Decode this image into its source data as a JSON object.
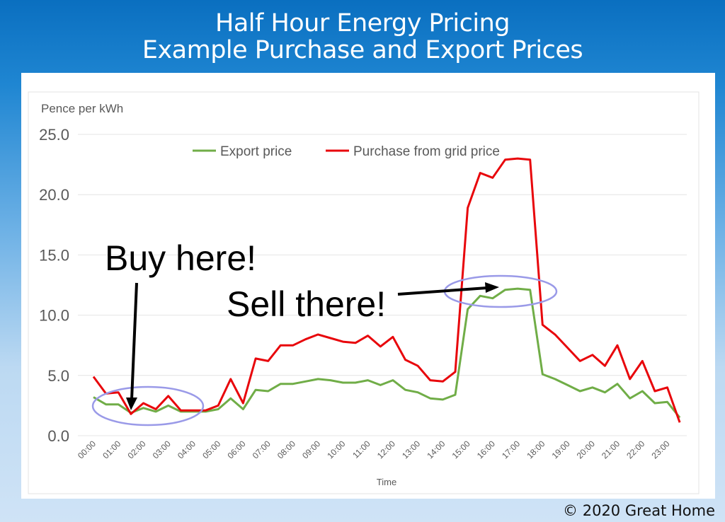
{
  "header": {
    "title_line1": "Half Hour Energy Pricing",
    "title_line2": "Example Purchase and Export Prices"
  },
  "footer": {
    "copyright": "© 2020 Great Home"
  },
  "annotations": {
    "buy": "Buy here!",
    "sell": "Sell there!",
    "ellipse_color": "#9a9ae8"
  },
  "chart_data": {
    "type": "line",
    "title": "",
    "ylabel": "Pence per kWh",
    "xlabel": "Time",
    "ylim": [
      0,
      25
    ],
    "yticks": [
      "0.0",
      "5.0",
      "10.0",
      "15.0",
      "20.0",
      "25.0"
    ],
    "grid": true,
    "legend": "top",
    "xtick_labels": [
      "00:00",
      "01:00",
      "02:00",
      "03:00",
      "04:00",
      "05:00",
      "06:00",
      "07:00",
      "08:00",
      "09:00",
      "10:00",
      "11:00",
      "12:00",
      "13:00",
      "14:00",
      "15:00",
      "16:00",
      "17:00",
      "18:00",
      "19:00",
      "20:00",
      "21:00",
      "22:00",
      "23:00"
    ],
    "x_interval": "half-hourly, 00:00 to 23:30",
    "series": [
      {
        "name": "Export price",
        "color": "#70ad47",
        "values": [
          3.2,
          2.6,
          2.6,
          1.9,
          2.3,
          2.0,
          2.5,
          2.0,
          2.0,
          2.0,
          2.2,
          3.1,
          2.2,
          3.8,
          3.7,
          4.3,
          4.3,
          4.5,
          4.7,
          4.6,
          4.4,
          4.4,
          4.6,
          4.2,
          4.6,
          3.8,
          3.6,
          3.1,
          3.0,
          3.4,
          10.5,
          11.6,
          11.4,
          12.1,
          12.2,
          12.1,
          5.1,
          4.7,
          4.2,
          3.7,
          4.0,
          3.6,
          4.3,
          3.1,
          3.7,
          2.7,
          2.8,
          1.5
        ]
      },
      {
        "name": "Purchase from grid price",
        "color": "#e8060b",
        "values": [
          4.9,
          3.5,
          3.6,
          1.8,
          2.7,
          2.2,
          3.3,
          2.1,
          2.1,
          2.1,
          2.5,
          4.7,
          2.7,
          6.4,
          6.2,
          7.5,
          7.5,
          8.0,
          8.4,
          8.1,
          7.8,
          7.7,
          8.3,
          7.4,
          8.2,
          6.3,
          5.8,
          4.6,
          4.5,
          5.3,
          18.9,
          21.8,
          21.4,
          22.9,
          23.0,
          22.9,
          9.2,
          8.4,
          7.3,
          6.2,
          6.7,
          5.8,
          7.5,
          4.7,
          6.2,
          3.7,
          4.0,
          1.1
        ]
      }
    ]
  }
}
